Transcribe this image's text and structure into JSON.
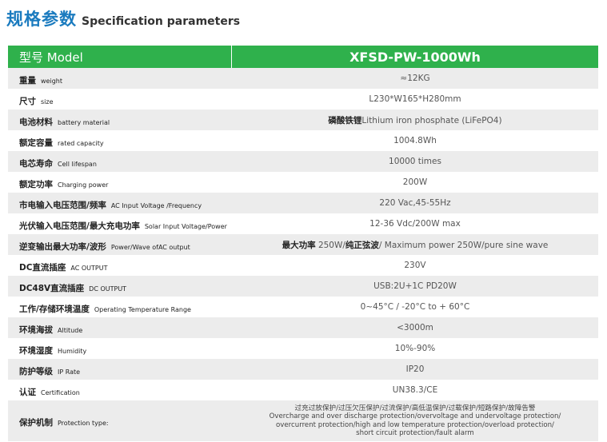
{
  "header": {
    "title_zh": "规格参数",
    "title_en": "Specification parameters"
  },
  "table": {
    "head": {
      "label": "型号 Model",
      "value": "XFSD-PW-1000Wh"
    },
    "rows": [
      {
        "zh": "重量",
        "en": "weight",
        "value": [
          {
            "text": "≈12KG"
          }
        ]
      },
      {
        "zh": "尺寸",
        "en": "size",
        "value": [
          {
            "text": "L230*W165*H280mm"
          }
        ]
      },
      {
        "zh": "电池材料",
        "en": "battery material",
        "value": [
          {
            "text": "磷酸铁锂",
            "bold": true
          },
          {
            "text": "Lithium iron phosphate (LiFePO4)"
          }
        ]
      },
      {
        "zh": "额定容量",
        "en": "rated capacity",
        "value": [
          {
            "text": "1004.8Wh"
          }
        ]
      },
      {
        "zh": "电芯寿命",
        "en": "Cell lifespan",
        "value": [
          {
            "text": "10000 times"
          }
        ]
      },
      {
        "zh": "额定功率",
        "en": "Charging power",
        "value": [
          {
            "text": "200W"
          }
        ]
      },
      {
        "zh": "市电输入电压范围/频率",
        "en": "AC Input Voltage /Frequency",
        "value": [
          {
            "text": "220 Vac,45-55Hz"
          }
        ]
      },
      {
        "zh": "光伏输入电压范围/最大充电功率",
        "en": "Solar Input Voltage/Power",
        "value": [
          {
            "text": "12-36 Vdc/200W max"
          }
        ]
      },
      {
        "zh": "逆变输出最大功率/波形",
        "en": "Power/Wave ofAC output",
        "value": [
          {
            "text": "最大功率",
            "bold": true
          },
          {
            "text": " 250W/"
          },
          {
            "text": "纯正弦波",
            "bold": true
          },
          {
            "text": "/  Maximum power 250W/pure sine wave"
          }
        ]
      },
      {
        "zh": "DC直流插座",
        "en": "AC OUTPUT",
        "value": [
          {
            "text": "230V"
          }
        ]
      },
      {
        "zh": "DC48V直流插座",
        "en": "DC OUTPUT",
        "value": [
          {
            "text": "USB:2U+1C PD20W"
          }
        ]
      },
      {
        "zh": "工作/存储环境温度",
        "en": "Operating Temperature Range",
        "value": [
          {
            "text": "0~45°C / -20°C to + 60°C"
          }
        ]
      },
      {
        "zh": "环境海拔",
        "en": "Altitude",
        "value": [
          {
            "text": "<3000m"
          }
        ]
      },
      {
        "zh": "环境湿度",
        "en": "Humidity",
        "value": [
          {
            "text": "10%-90%"
          }
        ]
      },
      {
        "zh": "防护等级",
        "en": "IP Rate",
        "value": [
          {
            "text": "IP20"
          }
        ]
      },
      {
        "zh": "认证",
        "en": "Certification",
        "value": [
          {
            "text": "UN38.3/CE"
          }
        ]
      },
      {
        "zh": "保护机制",
        "en": "Protection type:",
        "lines": [
          "过充过放保护/过压欠压保护/过流保护/高低温保护/过载保护/短路保护/故障告警",
          "Overcharge and over discharge protection/overvoltage and undervoltage protection/",
          "overcurrent protection/high and low temperature protection/overload protection/",
          "short circuit protection/fault alarm"
        ]
      }
    ]
  }
}
